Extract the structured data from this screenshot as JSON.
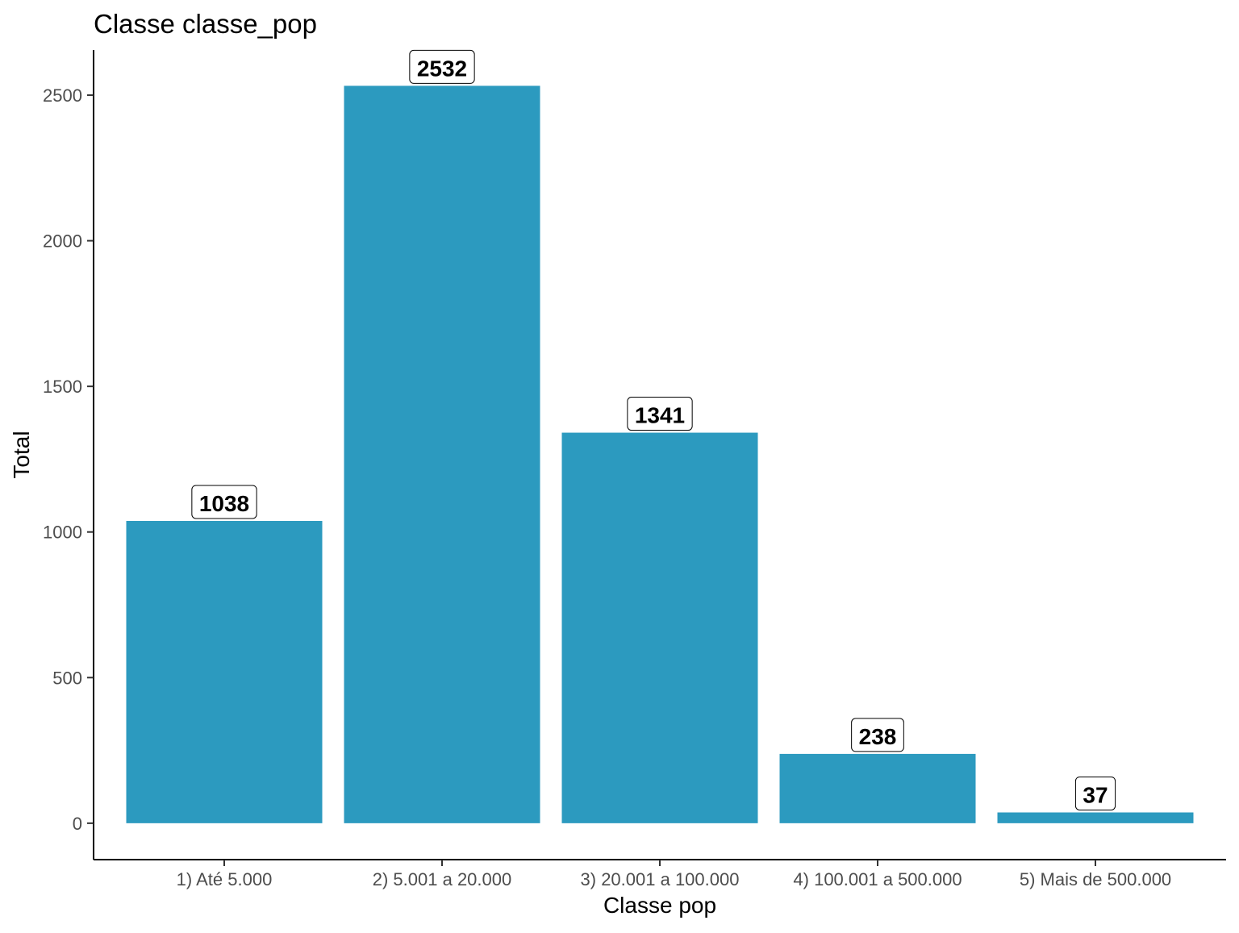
{
  "chart_data": {
    "type": "bar",
    "title": "Classe classe_pop",
    "xlabel": "Classe pop",
    "ylabel": "Total",
    "categories": [
      "1) Até 5.000",
      "2) 5.001 a 20.000",
      "3) 20.001 a 100.000",
      "4) 100.001 a 500.000",
      "5) Mais de 500.000"
    ],
    "values": [
      1038,
      2532,
      1341,
      238,
      37
    ],
    "data_labels": [
      "1038",
      "2532",
      "1341",
      "238",
      "37"
    ],
    "ylim": [
      -125,
      2655
    ],
    "yticks": [
      0,
      500,
      1000,
      1500,
      2000,
      2500
    ],
    "ytick_labels": [
      "0",
      "500",
      "1000",
      "1500",
      "2000",
      "2500"
    ],
    "bar_color": "#2c9abf",
    "grid": false,
    "legend": "none"
  }
}
